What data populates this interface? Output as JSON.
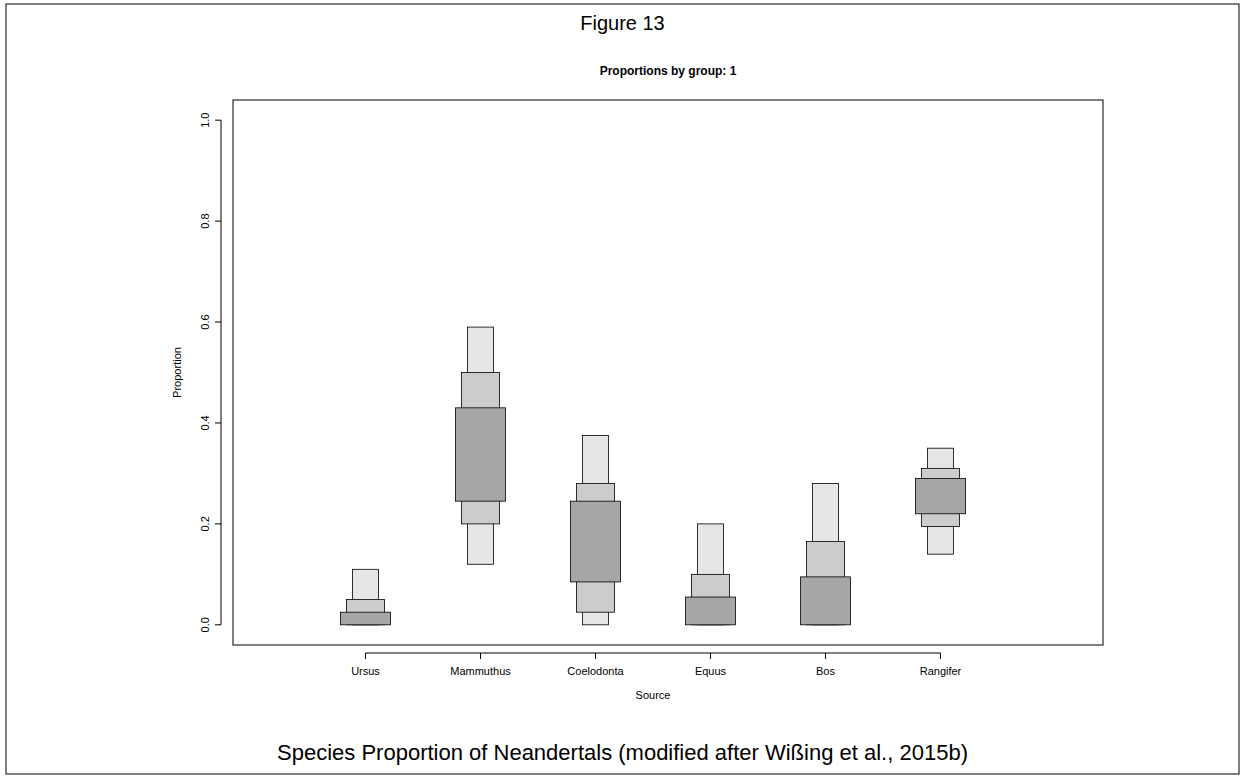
{
  "chart_data": {
    "type": "interval",
    "title": "Figure 13",
    "subtitle": "Proportions by group: 1",
    "caption": "Species Proportion of Neandertals (modified after Wißing et al., 2015b)",
    "x_label": "Source",
    "y_label": "Proportion",
    "categories": [
      "Ursus",
      "Mammuthus",
      "Coelodonta",
      "Equus",
      "Bos",
      "Rangifer"
    ],
    "ranges": [
      {
        "color": "#e6e6e6",
        "lower": [
          0.0,
          0.12,
          0.0,
          0.0,
          0.0,
          0.14
        ],
        "upper": [
          0.11,
          0.59,
          0.375,
          0.2,
          0.28,
          0.35
        ]
      },
      {
        "color": "#cccccc",
        "lower": [
          0.0,
          0.2,
          0.025,
          0.0,
          0.0,
          0.195
        ],
        "upper": [
          0.05,
          0.5,
          0.28,
          0.1,
          0.165,
          0.31
        ]
      },
      {
        "color": "#a6a6a6",
        "lower": [
          0.0,
          0.245,
          0.085,
          0.0,
          0.0,
          0.22
        ],
        "upper": [
          0.025,
          0.43,
          0.245,
          0.055,
          0.095,
          0.29
        ]
      }
    ],
    "ylim": [
      -0.04,
      1.04
    ],
    "yticks": [
      {
        "value": 0,
        "label": "0.0"
      },
      0.2,
      0.4,
      0.6,
      0.8,
      {
        "value": 1,
        "label": "1.0"
      }
    ]
  }
}
